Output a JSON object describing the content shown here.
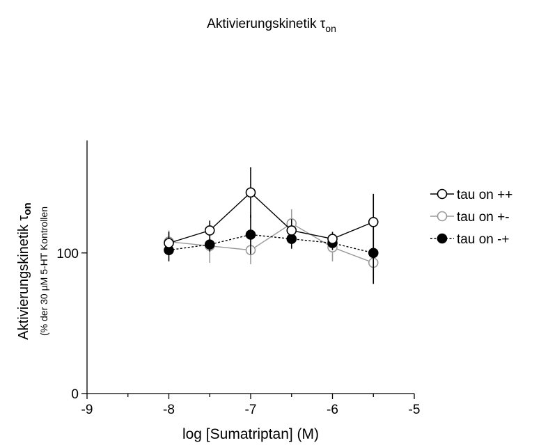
{
  "chart_data": {
    "type": "line",
    "title": "Aktivierungskinetik τ",
    "title_sub": "on",
    "xlabel": "log [Sumatriptan] (M)",
    "ylabel": "Aktivierungskinetik τ",
    "ylabel_sub": "on",
    "ylabel2": "(% der 30 µM 5-HT Kontrollen",
    "xlim": [
      -9,
      -5
    ],
    "ylim": [
      0,
      180
    ],
    "x_ticks": [
      -9,
      -8,
      -7,
      -6,
      -5
    ],
    "x_tick_labels": [
      "-9",
      "-8",
      "-7",
      "-6",
      "-5"
    ],
    "y_ticks": [
      0,
      100
    ],
    "y_tick_labels": [
      "0",
      "100"
    ],
    "grid": false,
    "legend_position": "right",
    "x": [
      -8,
      -7.5,
      -7,
      -6.5,
      -6,
      -5.5
    ],
    "series": [
      {
        "name": "tau on ++",
        "color": "#000000",
        "marker": "open-circle",
        "line": "solid",
        "values": [
          107,
          116,
          143,
          116,
          110,
          122
        ],
        "error": [
          8,
          7,
          18,
          8,
          5,
          20
        ]
      },
      {
        "name": "tau on +-",
        "color": "#999999",
        "marker": "open-circle",
        "line": "solid",
        "values": [
          108,
          105,
          102,
          121,
          104,
          93
        ],
        "error": [
          8,
          12,
          10,
          10,
          10,
          10
        ]
      },
      {
        "name": "tau on -+",
        "color": "#000000",
        "marker": "filled-circle",
        "line": "dotted",
        "values": [
          102,
          106,
          113,
          110,
          107,
          100
        ],
        "error": [
          8,
          5,
          14,
          7,
          5,
          22
        ]
      }
    ]
  }
}
